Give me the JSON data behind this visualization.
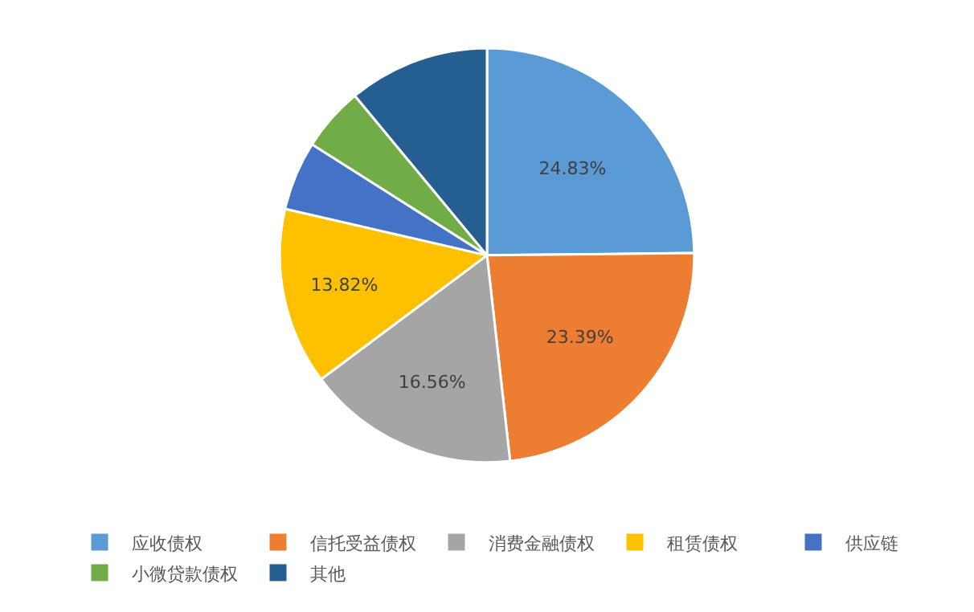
{
  "chart_data": {
    "type": "pie",
    "categories": [
      "应收债权",
      "信托受益债权",
      "消费金融债权",
      "租赁债权",
      "供应链",
      "小微贷款债权",
      "其他"
    ],
    "values": [
      24.83,
      23.39,
      16.56,
      13.82,
      5.4,
      5.0,
      11.0
    ],
    "value_labels": [
      "24.83%",
      "23.39%",
      "16.56%",
      "13.82%",
      null,
      null,
      null
    ],
    "colors": [
      "#5b9bd5",
      "#ed7d31",
      "#a5a5a5",
      "#ffc000",
      "#4472c4",
      "#70ad47",
      "#255e91"
    ],
    "legend": "bottom"
  }
}
